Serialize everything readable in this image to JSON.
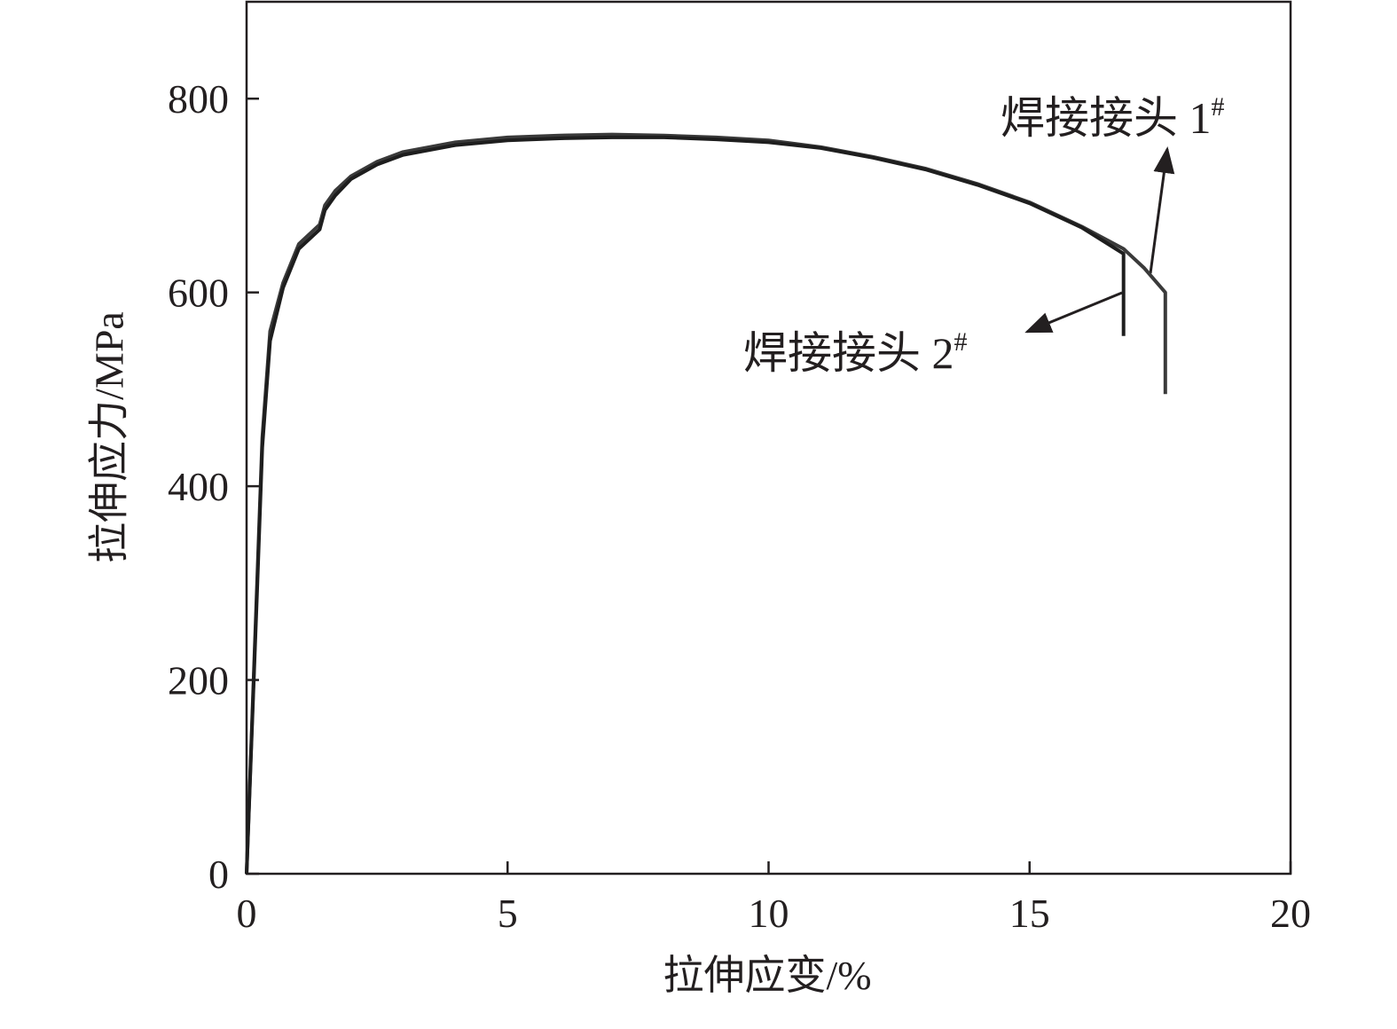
{
  "chart_data": {
    "type": "line",
    "x_label": "拉伸应变/%",
    "y_label": "拉伸应力/MPa",
    "xlim": [
      0,
      20
    ],
    "xticks": [
      0,
      5,
      10,
      15,
      20
    ],
    "ylim": [
      0,
      900
    ],
    "yticks": [
      0,
      200,
      400,
      600,
      800
    ],
    "series": [
      {
        "name": "焊接接头 1#",
        "color": "#3a3a3a",
        "x": [
          0,
          0.1,
          0.2,
          0.3,
          0.45,
          0.7,
          1.0,
          1.4,
          1.5,
          1.7,
          2,
          2.5,
          3,
          4,
          5,
          6,
          7,
          8,
          9,
          10,
          11,
          12,
          13,
          14,
          15,
          16,
          16.8,
          17.2,
          17.6,
          17.6
        ],
        "values": [
          0,
          150,
          300,
          450,
          560,
          610,
          650,
          670,
          690,
          705,
          720,
          735,
          745,
          755,
          760,
          762,
          763,
          762,
          760,
          757,
          750,
          740,
          728,
          712,
          693,
          668,
          645,
          625,
          600,
          495
        ]
      },
      {
        "name": "焊接接头 2#",
        "color": "#1e1e1e",
        "x": [
          0,
          0.1,
          0.2,
          0.3,
          0.45,
          0.7,
          1.0,
          1.4,
          1.5,
          1.7,
          2,
          2.5,
          3,
          4,
          5,
          6,
          7,
          8,
          9,
          10,
          11,
          12,
          13,
          14,
          15,
          16,
          16.8,
          16.8
        ],
        "values": [
          0,
          145,
          290,
          440,
          550,
          605,
          645,
          665,
          685,
          700,
          717,
          732,
          742,
          752,
          757,
          759,
          760,
          760,
          758,
          755,
          749,
          739,
          727,
          711,
          692,
          667,
          640,
          555
        ]
      }
    ]
  }
}
